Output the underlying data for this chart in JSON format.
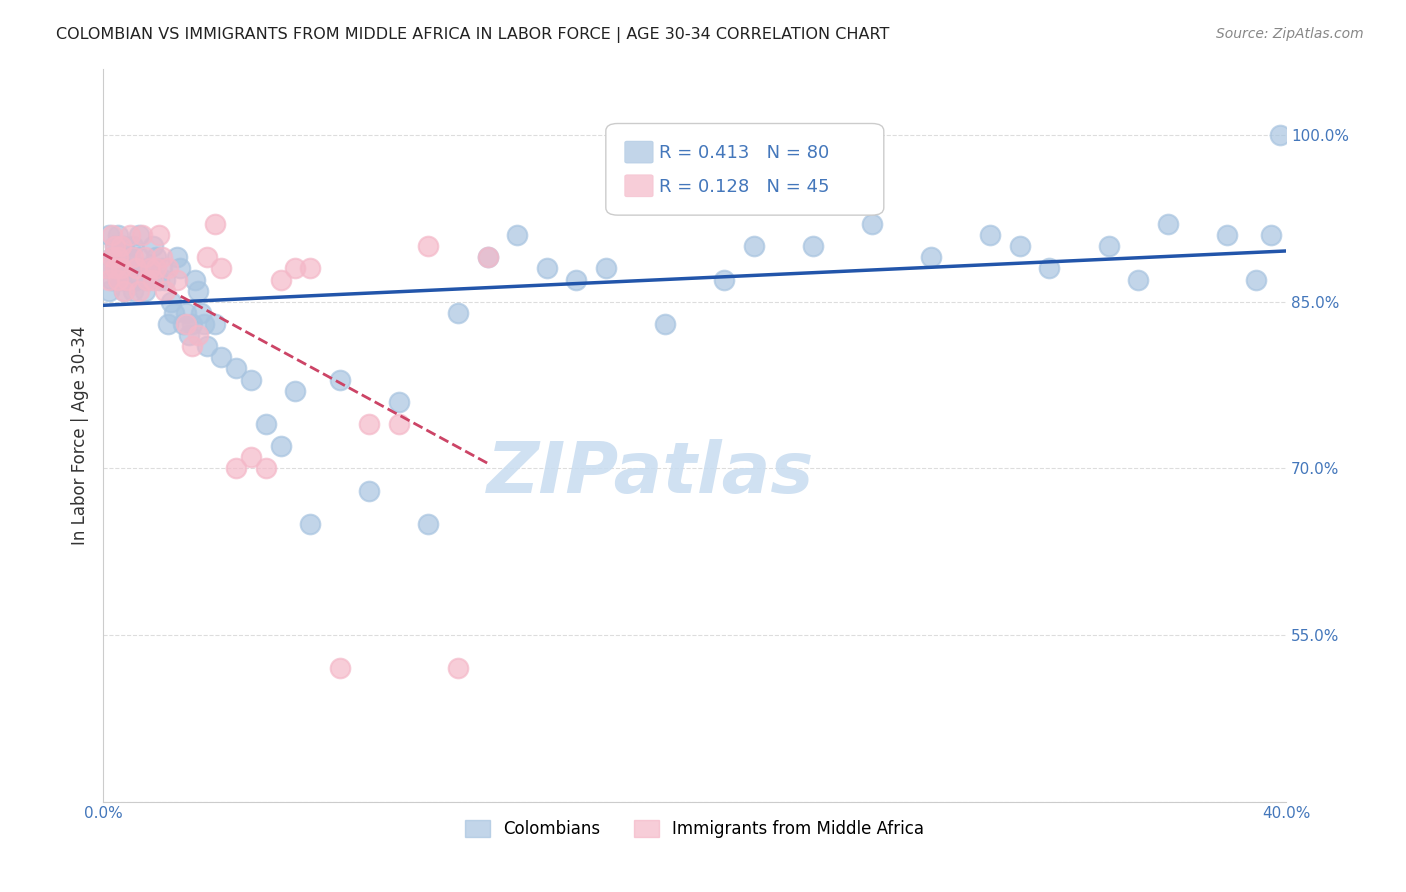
{
  "title": "COLOMBIAN VS IMMIGRANTS FROM MIDDLE AFRICA IN LABOR FORCE | AGE 30-34 CORRELATION CHART",
  "source": "Source: ZipAtlas.com",
  "ylabel": "In Labor Force | Age 30-34",
  "xlim": [
    0.0,
    0.4
  ],
  "ylim": [
    0.4,
    1.06
  ],
  "xticks": [
    0.0,
    0.1,
    0.2,
    0.3,
    0.4
  ],
  "ytick_positions": [
    0.4,
    0.55,
    0.7,
    0.85,
    1.0
  ],
  "blue_R": 0.413,
  "blue_N": 80,
  "pink_R": 0.128,
  "pink_N": 45,
  "blue_color": "#A8C4E0",
  "blue_line_color": "#2255AA",
  "pink_color": "#F4B8C8",
  "pink_line_color": "#CC4466",
  "background_color": "#FFFFFF",
  "grid_color": "#DDDDDD",
  "blue_scatter_x": [
    0.001,
    0.002,
    0.002,
    0.003,
    0.003,
    0.004,
    0.004,
    0.005,
    0.005,
    0.005,
    0.006,
    0.006,
    0.007,
    0.007,
    0.008,
    0.008,
    0.009,
    0.01,
    0.01,
    0.011,
    0.011,
    0.012,
    0.012,
    0.013,
    0.014,
    0.015,
    0.016,
    0.017,
    0.018,
    0.019,
    0.02,
    0.021,
    0.022,
    0.023,
    0.024,
    0.025,
    0.026,
    0.027,
    0.028,
    0.029,
    0.03,
    0.031,
    0.032,
    0.033,
    0.034,
    0.035,
    0.038,
    0.04,
    0.045,
    0.05,
    0.055,
    0.06,
    0.065,
    0.07,
    0.08,
    0.09,
    0.1,
    0.11,
    0.12,
    0.13,
    0.14,
    0.15,
    0.16,
    0.17,
    0.19,
    0.21,
    0.22,
    0.24,
    0.26,
    0.28,
    0.3,
    0.31,
    0.32,
    0.34,
    0.35,
    0.36,
    0.38,
    0.39,
    0.395,
    0.398
  ],
  "blue_scatter_y": [
    0.88,
    0.86,
    0.91,
    0.87,
    0.89,
    0.88,
    0.9,
    0.87,
    0.89,
    0.91,
    0.87,
    0.88,
    0.86,
    0.9,
    0.88,
    0.87,
    0.89,
    0.86,
    0.9,
    0.88,
    0.87,
    0.89,
    0.91,
    0.88,
    0.86,
    0.87,
    0.88,
    0.9,
    0.89,
    0.87,
    0.88,
    0.87,
    0.83,
    0.85,
    0.84,
    0.89,
    0.88,
    0.83,
    0.84,
    0.82,
    0.83,
    0.87,
    0.86,
    0.84,
    0.83,
    0.81,
    0.83,
    0.8,
    0.79,
    0.78,
    0.74,
    0.72,
    0.77,
    0.65,
    0.78,
    0.68,
    0.76,
    0.65,
    0.84,
    0.89,
    0.91,
    0.88,
    0.87,
    0.88,
    0.83,
    0.87,
    0.9,
    0.9,
    0.92,
    0.89,
    0.91,
    0.9,
    0.88,
    0.9,
    0.87,
    0.92,
    0.91,
    0.87,
    0.91,
    1.0
  ],
  "pink_scatter_x": [
    0.001,
    0.002,
    0.003,
    0.003,
    0.004,
    0.004,
    0.005,
    0.005,
    0.006,
    0.006,
    0.007,
    0.008,
    0.009,
    0.01,
    0.011,
    0.012,
    0.013,
    0.014,
    0.015,
    0.016,
    0.017,
    0.018,
    0.019,
    0.02,
    0.021,
    0.022,
    0.025,
    0.028,
    0.03,
    0.032,
    0.035,
    0.038,
    0.04,
    0.045,
    0.05,
    0.055,
    0.06,
    0.065,
    0.07,
    0.08,
    0.09,
    0.1,
    0.11,
    0.12,
    0.13
  ],
  "pink_scatter_y": [
    0.88,
    0.87,
    0.89,
    0.91,
    0.88,
    0.9,
    0.87,
    0.89,
    0.9,
    0.88,
    0.86,
    0.87,
    0.91,
    0.89,
    0.88,
    0.86,
    0.91,
    0.89,
    0.87,
    0.88,
    0.87,
    0.88,
    0.91,
    0.89,
    0.86,
    0.88,
    0.87,
    0.83,
    0.81,
    0.82,
    0.89,
    0.92,
    0.88,
    0.7,
    0.71,
    0.7,
    0.87,
    0.88,
    0.88,
    0.52,
    0.74,
    0.74,
    0.9,
    0.52,
    0.89
  ]
}
